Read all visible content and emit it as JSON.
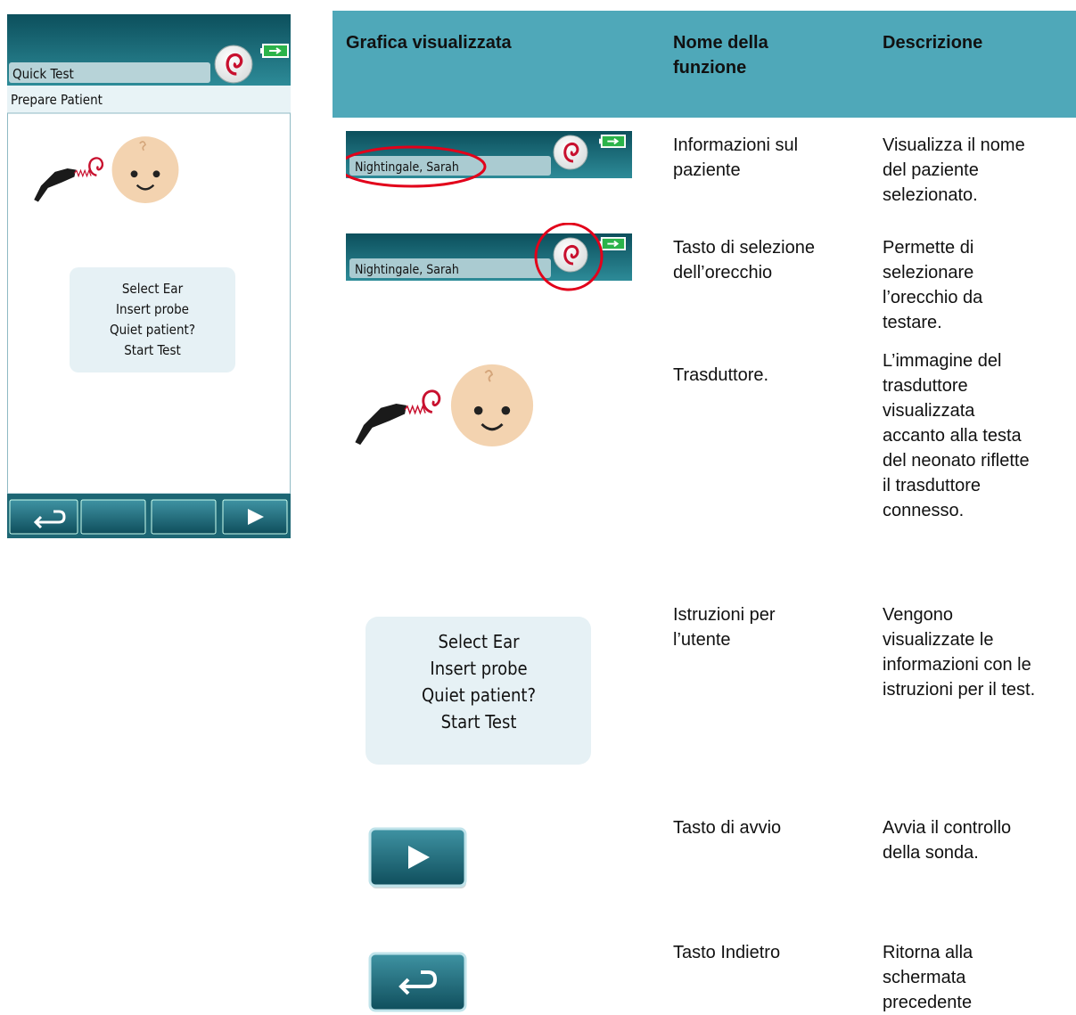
{
  "device": {
    "title": "Quick Test",
    "status": "Prepare Patient",
    "instructions": [
      "Select Ear",
      "Insert probe",
      "Quiet patient?",
      "Start Test"
    ]
  },
  "table": {
    "headers": [
      "Grafica visualizzata",
      "Nome della funzione",
      "Descrizione"
    ],
    "rows": [
      {
        "graphic_text": "Nightingale, Sarah",
        "function": [
          "Informazioni sul",
          "paziente"
        ],
        "description": [
          "Visualizza il nome",
          "del paziente",
          "selezionato."
        ]
      },
      {
        "graphic_text": "Nightingale, Sarah",
        "function": [
          "Tasto di selezione",
          "dell’orecchio"
        ],
        "description": [
          "Permette di",
          "selezionare",
          "l’orecchio da",
          "testare."
        ]
      },
      {
        "function": [
          "Trasduttore."
        ],
        "description": [
          "L’immagine del",
          "trasduttore",
          "visualizzata",
          "accanto alla testa",
          "del neonato riflette",
          "il trasduttore",
          "connesso."
        ]
      },
      {
        "graphic_text": [
          "Select Ear",
          "Insert probe",
          "Quiet patient?",
          "Start Test"
        ],
        "function": [
          "Istruzioni per",
          "l’utente"
        ],
        "description": [
          "Vengono",
          "visualizzate le",
          "informazioni con le",
          "istruzioni per il test."
        ]
      },
      {
        "function": [
          "Tasto di avvio"
        ],
        "description": [
          "Avvia il controllo",
          "della sonda."
        ]
      },
      {
        "function": [
          "Tasto Indietro"
        ],
        "description": [
          "Ritorna alla",
          "schermata",
          "precedente"
        ]
      }
    ]
  }
}
